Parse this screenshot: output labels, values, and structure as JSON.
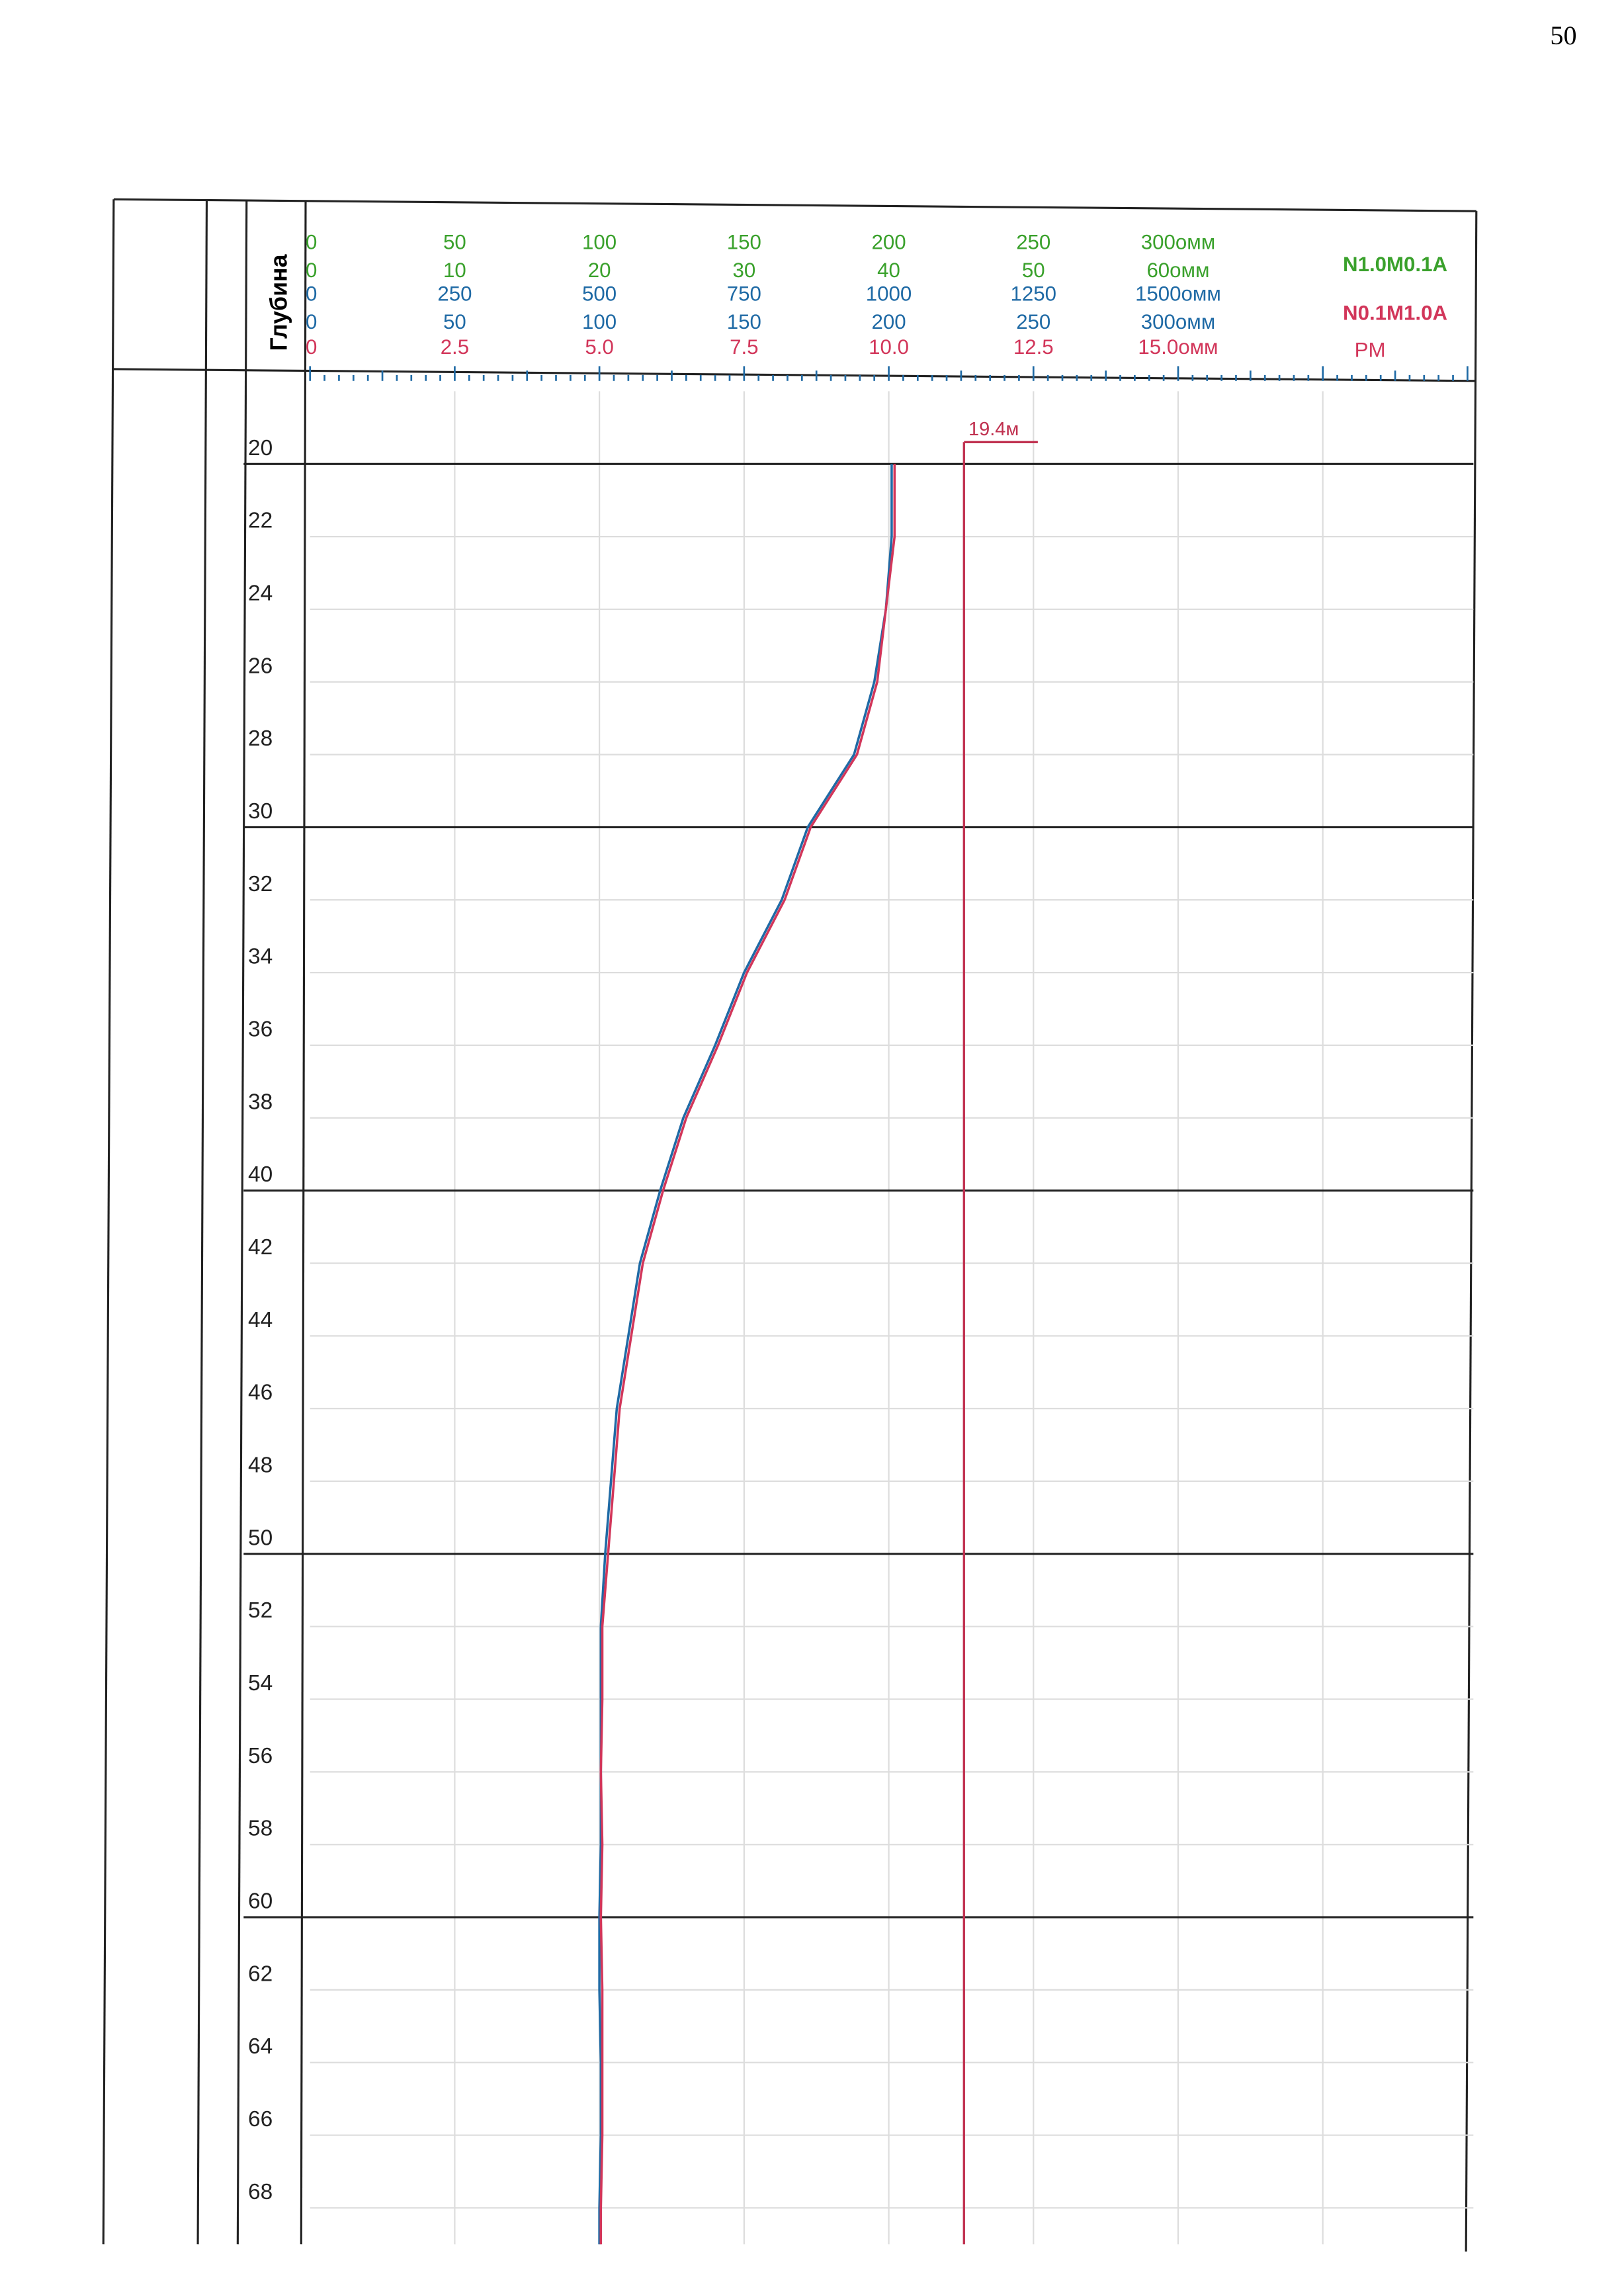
{
  "page_number": "50",
  "chart_data": {
    "type": "line",
    "y_label": "Глубина",
    "xlim": [
      0,
      400
    ],
    "ylim": [
      18,
      69
    ],
    "grid": true,
    "yticks": [
      20,
      22,
      24,
      26,
      28,
      30,
      32,
      34,
      36,
      38,
      40,
      42,
      44,
      46,
      48,
      50,
      52,
      54,
      56,
      58,
      60,
      62,
      64,
      66,
      68
    ],
    "scales": [
      {
        "color": "#3aa12c",
        "ticks": [
          0,
          50,
          100,
          150,
          200,
          250,
          {
            "value": 300,
            "label": "300омм"
          }
        ]
      },
      {
        "color": "#3aa12c",
        "ticks": [
          0,
          10,
          20,
          30,
          40,
          50,
          {
            "value": 60,
            "label": "60омм"
          }
        ]
      },
      {
        "color": "#1f6aa5",
        "ticks": [
          0,
          250,
          500,
          750,
          1000,
          1250,
          {
            "value": 1500,
            "label": "1500омм"
          }
        ]
      },
      {
        "color": "#1f6aa5",
        "ticks": [
          0,
          50,
          100,
          150,
          200,
          250,
          {
            "value": 300,
            "label": "300омм"
          }
        ]
      },
      {
        "color": "#d2365a",
        "ticks": [
          0,
          2.5,
          {
            "value": 5,
            "label": "5.0"
          },
          7.5,
          {
            "value": 10,
            "label": "10.0"
          },
          12.5,
          {
            "value": 15,
            "label": "15.0омм"
          }
        ]
      }
    ],
    "depth": [
      20,
      22,
      24,
      26,
      28,
      30,
      32,
      34,
      36,
      38,
      40,
      42,
      44,
      46,
      48,
      50,
      52,
      54,
      56,
      58,
      60,
      62,
      64,
      66,
      68,
      69
    ],
    "series": [
      {
        "name": "N1.0M0.1A",
        "color": "#1f6aa5",
        "values": [
          201,
          201,
          199,
          195,
          188,
          172,
          163,
          150,
          140,
          129,
          121,
          114,
          110,
          106,
          104,
          102,
          100.5,
          100.5,
          100.5,
          100.5,
          100,
          100,
          100.5,
          100.5,
          100,
          100
        ]
      },
      {
        "name": "N0.1M1.0A",
        "color": "#d2365a",
        "values": [
          202,
          202,
          199,
          196,
          189,
          173,
          164,
          151,
          141,
          130,
          122,
          115,
          111,
          107,
          105,
          103,
          101,
          101,
          100.5,
          101,
          100.5,
          101,
          101,
          101,
          100.5,
          100.5
        ]
      }
    ],
    "third_label": {
      "text": "PM",
      "color": "#d2365a"
    },
    "marker": {
      "value": 226,
      "depth": 19.4,
      "label": "19.4м",
      "color": "#c0304f"
    }
  }
}
